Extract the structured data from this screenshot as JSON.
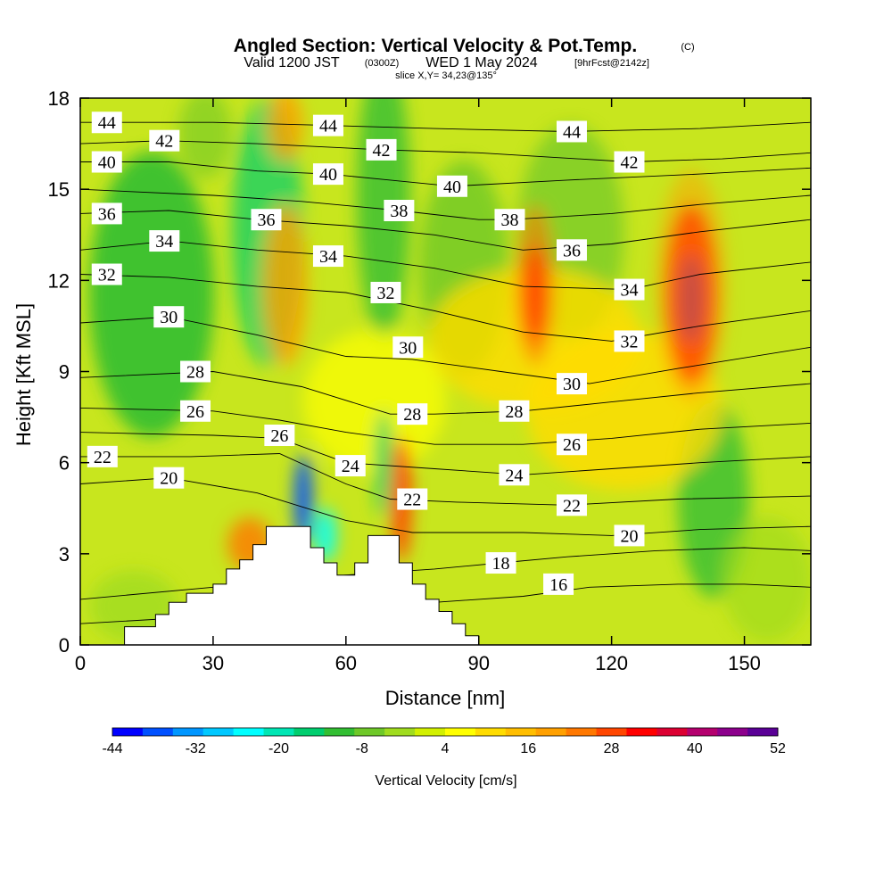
{
  "chart_data": {
    "type": "heatmap",
    "title": "Angled Section: Vertical Velocity & Pot.Temp.",
    "title_mark": "(C)",
    "subtitle": {
      "pre": "Valid 1200 JST",
      "utc": "(0300Z)",
      "date": "WED 1 May 2024",
      "fcst": "[9hrFcst@2142z]"
    },
    "slice_text": "slice X,Y= 34,23@135°",
    "xlabel": "Distance [nm]",
    "ylabel": "Height [Kft MSL]",
    "xlim": [
      0,
      165
    ],
    "ylim": [
      0,
      18
    ],
    "xticks": [
      0,
      30,
      60,
      90,
      120,
      150
    ],
    "yticks": [
      0,
      3,
      6,
      9,
      12,
      15,
      18
    ],
    "colorbar": {
      "label": "Vertical Velocity [cm/s]",
      "range": [
        -44,
        52
      ],
      "ticks": [
        -44,
        -32,
        -20,
        -8,
        4,
        16,
        28,
        40,
        52
      ],
      "colors": [
        "#0000ff",
        "#0050ff",
        "#0096ff",
        "#00c8ff",
        "#00ffff",
        "#00e6b4",
        "#00cd6e",
        "#32be32",
        "#6ec828",
        "#a0dc1e",
        "#d2f000",
        "#ffff00",
        "#ffdc00",
        "#ffbe00",
        "#ffa000",
        "#ff7800",
        "#ff4600",
        "#ff0000",
        "#dc0032",
        "#b4006e",
        "#8c008c",
        "#5a0096"
      ]
    },
    "terrain": [
      [
        0,
        0
      ],
      [
        10,
        0
      ],
      [
        10,
        0.6
      ],
      [
        17,
        0.6
      ],
      [
        17,
        1.0
      ],
      [
        20,
        1.0
      ],
      [
        20,
        1.4
      ],
      [
        24,
        1.4
      ],
      [
        24,
        1.7
      ],
      [
        30,
        1.7
      ],
      [
        30,
        2.0
      ],
      [
        33,
        2.0
      ],
      [
        33,
        2.5
      ],
      [
        36,
        2.5
      ],
      [
        36,
        2.8
      ],
      [
        39,
        2.8
      ],
      [
        39,
        3.3
      ],
      [
        42,
        3.3
      ],
      [
        42,
        3.9
      ],
      [
        52,
        3.9
      ],
      [
        52,
        3.2
      ],
      [
        55,
        3.2
      ],
      [
        55,
        2.7
      ],
      [
        58,
        2.7
      ],
      [
        58,
        2.3
      ],
      [
        62,
        2.3
      ],
      [
        62,
        2.7
      ],
      [
        65,
        2.7
      ],
      [
        65,
        3.6
      ],
      [
        72,
        3.6
      ],
      [
        72,
        2.7
      ],
      [
        75,
        2.7
      ],
      [
        75,
        2.0
      ],
      [
        78,
        2.0
      ],
      [
        78,
        1.5
      ],
      [
        81,
        1.5
      ],
      [
        81,
        1.1
      ],
      [
        84,
        1.1
      ],
      [
        84,
        0.7
      ],
      [
        87,
        0.7
      ],
      [
        87,
        0.3
      ],
      [
        90,
        0.3
      ],
      [
        90,
        0
      ],
      [
        165,
        0
      ]
    ],
    "contours": [
      {
        "label": "16",
        "pts": [
          [
            0,
            0.7
          ],
          [
            30,
            0.95
          ],
          [
            60,
            1.3
          ],
          [
            80,
            1.4
          ],
          [
            100,
            1.6
          ],
          [
            115,
            1.9
          ],
          [
            135,
            2.0
          ],
          [
            150,
            2.0
          ],
          [
            165,
            1.9
          ]
        ],
        "labels_at": [
          [
            108,
            2.0
          ]
        ]
      },
      {
        "label": "18",
        "pts": [
          [
            0,
            1.5
          ],
          [
            30,
            1.9
          ],
          [
            60,
            2.3
          ],
          [
            80,
            2.5
          ],
          [
            95,
            2.7
          ],
          [
            110,
            2.9
          ],
          [
            130,
            3.1
          ],
          [
            150,
            3.2
          ],
          [
            165,
            3.1
          ]
        ],
        "labels_at": [
          [
            95,
            2.7
          ]
        ]
      },
      {
        "label": "20",
        "pts": [
          [
            0,
            5.3
          ],
          [
            20,
            5.5
          ],
          [
            40,
            5.0
          ],
          [
            60,
            4.1
          ],
          [
            75,
            3.7
          ],
          [
            100,
            3.7
          ],
          [
            120,
            3.6
          ],
          [
            140,
            3.8
          ],
          [
            165,
            3.9
          ]
        ],
        "labels_at": [
          [
            20,
            5.5
          ],
          [
            124,
            3.6
          ]
        ]
      },
      {
        "label": "22",
        "pts": [
          [
            0,
            6.2
          ],
          [
            25,
            6.2
          ],
          [
            45,
            6.3
          ],
          [
            60,
            5.3
          ],
          [
            70,
            4.8
          ],
          [
            85,
            4.7
          ],
          [
            110,
            4.6
          ],
          [
            135,
            4.8
          ],
          [
            165,
            4.9
          ]
        ],
        "labels_at": [
          [
            5,
            6.2
          ],
          [
            75,
            4.8
          ],
          [
            111,
            4.6
          ]
        ]
      },
      {
        "label": "24",
        "pts": [
          [
            0,
            7.0
          ],
          [
            30,
            6.9
          ],
          [
            45,
            6.8
          ],
          [
            60,
            6.0
          ],
          [
            80,
            5.8
          ],
          [
            100,
            5.6
          ],
          [
            120,
            5.8
          ],
          [
            140,
            6.0
          ],
          [
            165,
            6.2
          ]
        ],
        "labels_at": [
          [
            61,
            5.9
          ],
          [
            98,
            5.6
          ]
        ]
      },
      {
        "label": "26",
        "pts": [
          [
            0,
            7.8
          ],
          [
            30,
            7.7
          ],
          [
            45,
            7.4
          ],
          [
            60,
            7.0
          ],
          [
            80,
            6.6
          ],
          [
            100,
            6.6
          ],
          [
            120,
            6.8
          ],
          [
            140,
            7.1
          ],
          [
            165,
            7.3
          ]
        ],
        "labels_at": [
          [
            26,
            7.7
          ],
          [
            45,
            6.9
          ],
          [
            111,
            6.6
          ]
        ]
      },
      {
        "label": "28",
        "pts": [
          [
            0,
            8.8
          ],
          [
            30,
            9.0
          ],
          [
            50,
            8.5
          ],
          [
            70,
            7.6
          ],
          [
            80,
            7.6
          ],
          [
            100,
            7.7
          ],
          [
            120,
            8.0
          ],
          [
            140,
            8.3
          ],
          [
            165,
            8.6
          ]
        ],
        "labels_at": [
          [
            26,
            9.0
          ],
          [
            75,
            7.6
          ],
          [
            98,
            7.7
          ]
        ]
      },
      {
        "label": "30",
        "pts": [
          [
            0,
            10.6
          ],
          [
            20,
            10.8
          ],
          [
            40,
            10.2
          ],
          [
            60,
            9.5
          ],
          [
            75,
            9.4
          ],
          [
            95,
            9.0
          ],
          [
            115,
            8.6
          ],
          [
            135,
            9.1
          ],
          [
            165,
            9.8
          ]
        ],
        "labels_at": [
          [
            20,
            10.8
          ],
          [
            74,
            9.8
          ],
          [
            111,
            8.6
          ]
        ]
      },
      {
        "label": "32",
        "pts": [
          [
            0,
            12.2
          ],
          [
            20,
            12.1
          ],
          [
            40,
            11.8
          ],
          [
            60,
            11.6
          ],
          [
            80,
            11.0
          ],
          [
            100,
            10.3
          ],
          [
            120,
            10.0
          ],
          [
            140,
            10.5
          ],
          [
            165,
            11.0
          ]
        ],
        "labels_at": [
          [
            6,
            12.2
          ],
          [
            69,
            11.6
          ],
          [
            124,
            10.0
          ]
        ]
      },
      {
        "label": "34",
        "pts": [
          [
            0,
            13.0
          ],
          [
            20,
            13.3
          ],
          [
            40,
            13.0
          ],
          [
            60,
            12.8
          ],
          [
            80,
            12.4
          ],
          [
            100,
            11.8
          ],
          [
            124,
            11.7
          ],
          [
            140,
            12.2
          ],
          [
            165,
            12.6
          ]
        ],
        "labels_at": [
          [
            19,
            13.3
          ],
          [
            56,
            12.8
          ],
          [
            124,
            11.7
          ]
        ]
      },
      {
        "label": "36",
        "pts": [
          [
            0,
            14.2
          ],
          [
            20,
            14.3
          ],
          [
            40,
            14.0
          ],
          [
            60,
            13.8
          ],
          [
            80,
            13.5
          ],
          [
            100,
            13.0
          ],
          [
            120,
            13.2
          ],
          [
            140,
            13.6
          ],
          [
            165,
            14.0
          ]
        ],
        "labels_at": [
          [
            6,
            14.2
          ],
          [
            42,
            14.0
          ],
          [
            111,
            13.0
          ]
        ]
      },
      {
        "label": "38",
        "pts": [
          [
            0,
            15.0
          ],
          [
            30,
            14.8
          ],
          [
            50,
            14.6
          ],
          [
            72,
            14.3
          ],
          [
            90,
            14.0
          ],
          [
            97,
            14.0
          ],
          [
            120,
            14.2
          ],
          [
            140,
            14.5
          ],
          [
            165,
            14.8
          ]
        ],
        "labels_at": [
          [
            72,
            14.3
          ],
          [
            97,
            14.0
          ]
        ]
      },
      {
        "label": "40",
        "pts": [
          [
            0,
            15.9
          ],
          [
            20,
            15.9
          ],
          [
            40,
            15.6
          ],
          [
            56,
            15.5
          ],
          [
            70,
            15.3
          ],
          [
            84,
            15.1
          ],
          [
            110,
            15.3
          ],
          [
            140,
            15.5
          ],
          [
            165,
            15.7
          ]
        ],
        "labels_at": [
          [
            6,
            15.9
          ],
          [
            56,
            15.5
          ],
          [
            84,
            15.1
          ]
        ]
      },
      {
        "label": "42",
        "pts": [
          [
            0,
            16.5
          ],
          [
            19,
            16.6
          ],
          [
            40,
            16.5
          ],
          [
            68,
            16.3
          ],
          [
            90,
            16.2
          ],
          [
            124,
            15.9
          ],
          [
            145,
            16.0
          ],
          [
            165,
            16.2
          ]
        ],
        "labels_at": [
          [
            19,
            16.6
          ],
          [
            68,
            16.3
          ],
          [
            124,
            15.9
          ]
        ]
      },
      {
        "label": "44",
        "pts": [
          [
            0,
            17.2
          ],
          [
            6,
            17.2
          ],
          [
            30,
            17.2
          ],
          [
            56,
            17.1
          ],
          [
            80,
            17.0
          ],
          [
            110,
            16.9
          ],
          [
            140,
            17.0
          ],
          [
            165,
            17.2
          ]
        ],
        "labels_at": [
          [
            6,
            17.2
          ],
          [
            56,
            17.1
          ],
          [
            111,
            16.9
          ]
        ]
      }
    ]
  }
}
